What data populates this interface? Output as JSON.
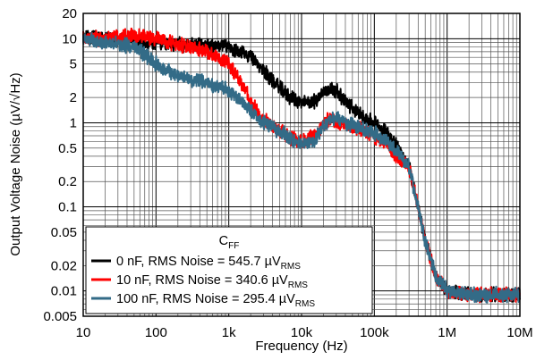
{
  "chart_data": {
    "type": "line",
    "xlabel": "Frequency (Hz)",
    "ylabel": "Output Voltage Noise (µV/√Hz)",
    "x_scale": "log",
    "y_scale": "log",
    "xlim": [
      10,
      10000000
    ],
    "ylim": [
      0.005,
      20
    ],
    "grid": true,
    "x_ticks": [
      {
        "value": 10,
        "label": "10"
      },
      {
        "value": 100,
        "label": "100"
      },
      {
        "value": 1000,
        "label": "1k"
      },
      {
        "value": 10000,
        "label": "10k"
      },
      {
        "value": 100000,
        "label": "100k"
      },
      {
        "value": 1000000,
        "label": "1M"
      },
      {
        "value": 10000000,
        "label": "10M"
      }
    ],
    "y_ticks": [
      {
        "value": 0.005,
        "label": "0.005"
      },
      {
        "value": 0.01,
        "label": "0.01"
      },
      {
        "value": 0.02,
        "label": "0.02"
      },
      {
        "value": 0.05,
        "label": "0.05"
      },
      {
        "value": 0.1,
        "label": "0.1"
      },
      {
        "value": 0.2,
        "label": "0.2"
      },
      {
        "value": 0.5,
        "label": "0.5"
      },
      {
        "value": 1,
        "label": "1"
      },
      {
        "value": 2,
        "label": "2"
      },
      {
        "value": 5,
        "label": "5"
      },
      {
        "value": 10,
        "label": "10"
      },
      {
        "value": 20,
        "label": "20"
      }
    ],
    "legend": {
      "title_main": "C",
      "title_sub": "FF",
      "placement": "bottom-left"
    },
    "series": [
      {
        "name_main": "0 nF, RMS Noise = 545.7 µV",
        "name_sub": "RMS",
        "color": "#000000",
        "x": [
          10,
          20,
          50,
          100,
          200,
          500,
          1000,
          2000,
          3000,
          5000,
          7000,
          10000,
          15000,
          20000,
          25000,
          30000,
          40000,
          60000,
          100000,
          150000,
          200000,
          300000,
          400000,
          500000,
          700000,
          1000000,
          2000000,
          5000000,
          10000000
        ],
        "y": [
          10.5,
          10,
          9.5,
          9,
          8.5,
          8.5,
          8,
          6,
          4.2,
          2.6,
          2,
          1.7,
          1.8,
          2.3,
          2.6,
          2.4,
          1.8,
          1.3,
          1.0,
          0.75,
          0.55,
          0.3,
          0.1,
          0.04,
          0.015,
          0.01,
          0.009,
          0.009,
          0.009
        ]
      },
      {
        "name_main": "10 nF, RMS Noise = 340.6  µV",
        "name_sub": "RMS",
        "color": "#ff0000",
        "x": [
          10,
          20,
          50,
          100,
          200,
          500,
          1000,
          1500,
          2000,
          3000,
          5000,
          7000,
          10000,
          15000,
          20000,
          25000,
          30000,
          40000,
          60000,
          100000,
          150000,
          200000,
          300000,
          400000,
          500000,
          700000,
          1000000,
          2000000,
          5000000,
          10000000
        ],
        "y": [
          10.5,
          10,
          11,
          10,
          8.5,
          7,
          5,
          3,
          1.8,
          1.1,
          0.8,
          0.65,
          0.6,
          0.7,
          1.0,
          1.1,
          1.0,
          0.95,
          0.85,
          0.7,
          0.55,
          0.4,
          0.3,
          0.1,
          0.04,
          0.015,
          0.01,
          0.009,
          0.009,
          0.009
        ]
      },
      {
        "name_main": "100 nF, RMS Noise = 295.4  µV",
        "name_sub": "RMS",
        "color": "#336b87",
        "x": [
          10,
          20,
          50,
          80,
          100,
          200,
          500,
          1000,
          1500,
          2000,
          3000,
          5000,
          7000,
          10000,
          15000,
          20000,
          25000,
          30000,
          40000,
          60000,
          100000,
          150000,
          200000,
          300000,
          400000,
          500000,
          700000,
          1000000,
          2000000,
          5000000,
          10000000
        ],
        "y": [
          10,
          9,
          8,
          6,
          5,
          3.5,
          3.0,
          2.5,
          1.8,
          1.4,
          1.0,
          0.8,
          0.65,
          0.55,
          0.6,
          0.9,
          1.1,
          1.15,
          1.0,
          0.9,
          0.75,
          0.6,
          0.45,
          0.3,
          0.1,
          0.04,
          0.015,
          0.01,
          0.009,
          0.009,
          0.009
        ]
      }
    ]
  }
}
